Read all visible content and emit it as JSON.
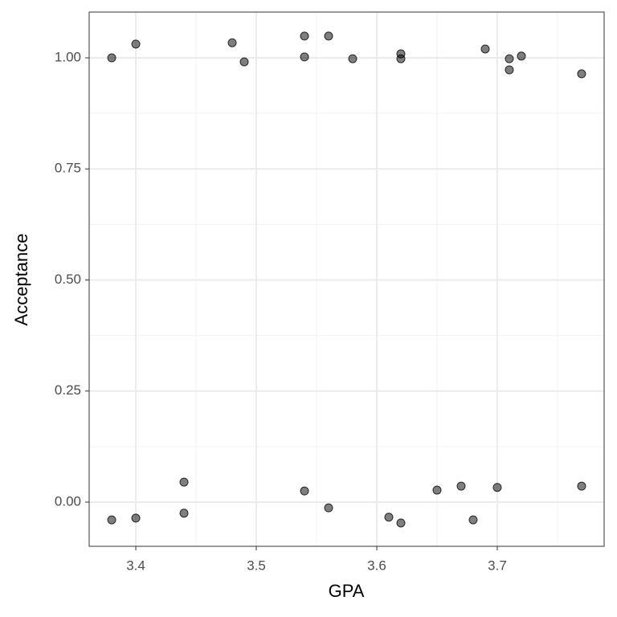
{
  "chart_data": {
    "type": "scatter",
    "x_label": "GPA",
    "y_label": "Acceptance",
    "xlim": [
      3.3613,
      3.7887
    ],
    "ylim": [
      -0.0995,
      1.1031
    ],
    "xticks": [
      3.4,
      3.5,
      3.6,
      3.7
    ],
    "yticks": [
      {
        "value": 0,
        "label": "0.00"
      },
      {
        "value": 0.25,
        "label": "0.25"
      },
      {
        "value": 0.5,
        "label": "0.50"
      },
      {
        "value": 0.75,
        "label": "0.75"
      },
      {
        "value": 1,
        "label": "1.00"
      }
    ],
    "grid": true,
    "minor_grid": true,
    "color": "#000000",
    "series": [
      {
        "x": [
          3.38,
          3.4,
          3.48,
          3.49,
          3.54,
          3.54,
          3.56,
          3.58,
          3.62,
          3.62,
          3.69,
          3.71,
          3.71,
          3.72,
          3.77,
          3.38,
          3.4,
          3.44,
          3.44,
          3.54,
          3.56,
          3.61,
          3.62,
          3.65,
          3.67,
          3.68,
          3.7,
          3.77
        ],
        "values": [
          1.0,
          1.031,
          1.034,
          0.991,
          1.049,
          1.002,
          1.049,
          0.998,
          1.009,
          0.998,
          1.02,
          0.998,
          0.973,
          1.004,
          0.964,
          -0.04,
          -0.036,
          0.045,
          -0.025,
          0.025,
          -0.013,
          -0.034,
          -0.047,
          0.027,
          0.036,
          -0.04,
          0.033,
          0.036
        ]
      }
    ]
  }
}
